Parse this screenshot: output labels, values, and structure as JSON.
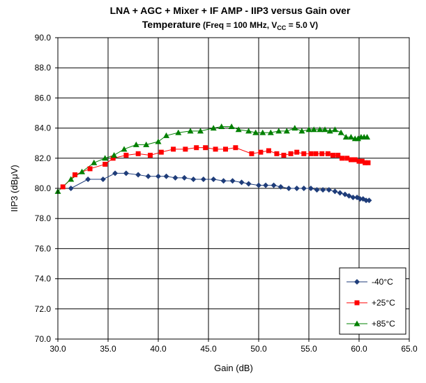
{
  "chart_data": {
    "type": "line",
    "title_line1": "LNA + AGC + Mixer + IF AMP - IIP3 versus Gain over",
    "title_line2_a": "Temperature",
    "title_line2_b": " (Freq = 100 MHz, V",
    "title_line2_sub": "CC",
    "title_line2_c": " = 5.0 V)",
    "xlabel": "Gain (dB)",
    "ylabel": "IIP3 (dBμV)",
    "xlim": [
      30.0,
      65.0
    ],
    "ylim": [
      70.0,
      90.0
    ],
    "x_ticks": [
      30.0,
      35.0,
      40.0,
      45.0,
      50.0,
      55.0,
      60.0,
      65.0
    ],
    "y_ticks": [
      70.0,
      72.0,
      74.0,
      76.0,
      78.0,
      80.0,
      82.0,
      84.0,
      86.0,
      88.0,
      90.0
    ],
    "x_tick_labels": [
      "30.0",
      "35.0",
      "40.0",
      "45.0",
      "50.0",
      "55.0",
      "60.0",
      "65.0"
    ],
    "y_tick_labels": [
      "70.0",
      "72.0",
      "74.0",
      "76.0",
      "78.0",
      "80.0",
      "82.0",
      "84.0",
      "86.0",
      "88.0",
      "90.0"
    ],
    "grid": true,
    "legend_position": "bottom-right",
    "series": [
      {
        "name": "-40°C",
        "color": "#1f3d7a",
        "marker": "diamond",
        "points": [
          [
            31.3,
            80.0
          ],
          [
            33.0,
            80.6
          ],
          [
            34.5,
            80.6
          ],
          [
            35.7,
            81.0
          ],
          [
            36.8,
            81.0
          ],
          [
            38.0,
            80.9
          ],
          [
            39.0,
            80.8
          ],
          [
            40.0,
            80.8
          ],
          [
            40.8,
            80.8
          ],
          [
            41.7,
            80.7
          ],
          [
            42.6,
            80.7
          ],
          [
            43.5,
            80.6
          ],
          [
            44.5,
            80.6
          ],
          [
            45.5,
            80.6
          ],
          [
            46.5,
            80.5
          ],
          [
            47.4,
            80.5
          ],
          [
            48.3,
            80.4
          ],
          [
            49.0,
            80.3
          ],
          [
            50.0,
            80.2
          ],
          [
            50.7,
            80.2
          ],
          [
            51.5,
            80.2
          ],
          [
            52.2,
            80.1
          ],
          [
            53.0,
            80.0
          ],
          [
            53.8,
            80.0
          ],
          [
            54.5,
            80.0
          ],
          [
            55.2,
            80.0
          ],
          [
            55.8,
            79.9
          ],
          [
            56.4,
            79.9
          ],
          [
            57.0,
            79.9
          ],
          [
            57.6,
            79.8
          ],
          [
            58.1,
            79.7
          ],
          [
            58.6,
            79.6
          ],
          [
            59.0,
            79.5
          ],
          [
            59.4,
            79.4
          ],
          [
            59.8,
            79.4
          ],
          [
            60.1,
            79.3
          ],
          [
            60.4,
            79.3
          ],
          [
            60.7,
            79.2
          ],
          [
            61.0,
            79.2
          ]
        ]
      },
      {
        "name": "+25°C",
        "color": "#ff0000",
        "marker": "square",
        "points": [
          [
            30.5,
            80.1
          ],
          [
            31.7,
            80.9
          ],
          [
            33.2,
            81.3
          ],
          [
            34.7,
            81.6
          ],
          [
            35.5,
            82.0
          ],
          [
            36.8,
            82.2
          ],
          [
            38.0,
            82.3
          ],
          [
            39.2,
            82.2
          ],
          [
            40.3,
            82.4
          ],
          [
            41.5,
            82.6
          ],
          [
            42.7,
            82.6
          ],
          [
            43.8,
            82.7
          ],
          [
            44.7,
            82.7
          ],
          [
            45.7,
            82.6
          ],
          [
            46.7,
            82.6
          ],
          [
            47.7,
            82.7
          ],
          [
            49.3,
            82.3
          ],
          [
            50.2,
            82.4
          ],
          [
            51.0,
            82.5
          ],
          [
            51.8,
            82.3
          ],
          [
            52.5,
            82.2
          ],
          [
            53.2,
            82.3
          ],
          [
            53.8,
            82.4
          ],
          [
            54.5,
            82.3
          ],
          [
            55.2,
            82.3
          ],
          [
            55.7,
            82.3
          ],
          [
            56.3,
            82.3
          ],
          [
            56.9,
            82.3
          ],
          [
            57.4,
            82.2
          ],
          [
            57.9,
            82.2
          ],
          [
            58.3,
            82.0
          ],
          [
            58.8,
            82.0
          ],
          [
            59.2,
            81.9
          ],
          [
            59.6,
            81.9
          ],
          [
            60.0,
            81.8
          ],
          [
            60.3,
            81.8
          ],
          [
            60.6,
            81.7
          ],
          [
            60.9,
            81.7
          ]
        ]
      },
      {
        "name": "+85°C",
        "color": "#008000",
        "marker": "triangle",
        "points": [
          [
            30.0,
            79.8
          ],
          [
            31.3,
            80.6
          ],
          [
            32.4,
            81.1
          ],
          [
            33.6,
            81.7
          ],
          [
            34.7,
            82.0
          ],
          [
            35.6,
            82.2
          ],
          [
            36.6,
            82.6
          ],
          [
            37.8,
            82.9
          ],
          [
            38.8,
            82.9
          ],
          [
            40.0,
            83.1
          ],
          [
            40.8,
            83.5
          ],
          [
            42.0,
            83.7
          ],
          [
            43.2,
            83.8
          ],
          [
            44.2,
            83.8
          ],
          [
            45.5,
            84.0
          ],
          [
            46.3,
            84.1
          ],
          [
            47.3,
            84.1
          ],
          [
            48.0,
            83.9
          ],
          [
            49.0,
            83.8
          ],
          [
            49.7,
            83.7
          ],
          [
            50.4,
            83.7
          ],
          [
            51.2,
            83.7
          ],
          [
            52.0,
            83.8
          ],
          [
            52.8,
            83.8
          ],
          [
            53.6,
            84.0
          ],
          [
            54.3,
            83.8
          ],
          [
            55.0,
            83.9
          ],
          [
            55.5,
            83.9
          ],
          [
            56.1,
            83.9
          ],
          [
            56.6,
            83.9
          ],
          [
            57.1,
            83.8
          ],
          [
            57.6,
            83.9
          ],
          [
            58.2,
            83.7
          ],
          [
            58.7,
            83.4
          ],
          [
            59.2,
            83.4
          ],
          [
            59.6,
            83.3
          ],
          [
            59.9,
            83.3
          ],
          [
            60.2,
            83.4
          ],
          [
            60.5,
            83.4
          ],
          [
            60.8,
            83.4
          ]
        ]
      }
    ]
  }
}
